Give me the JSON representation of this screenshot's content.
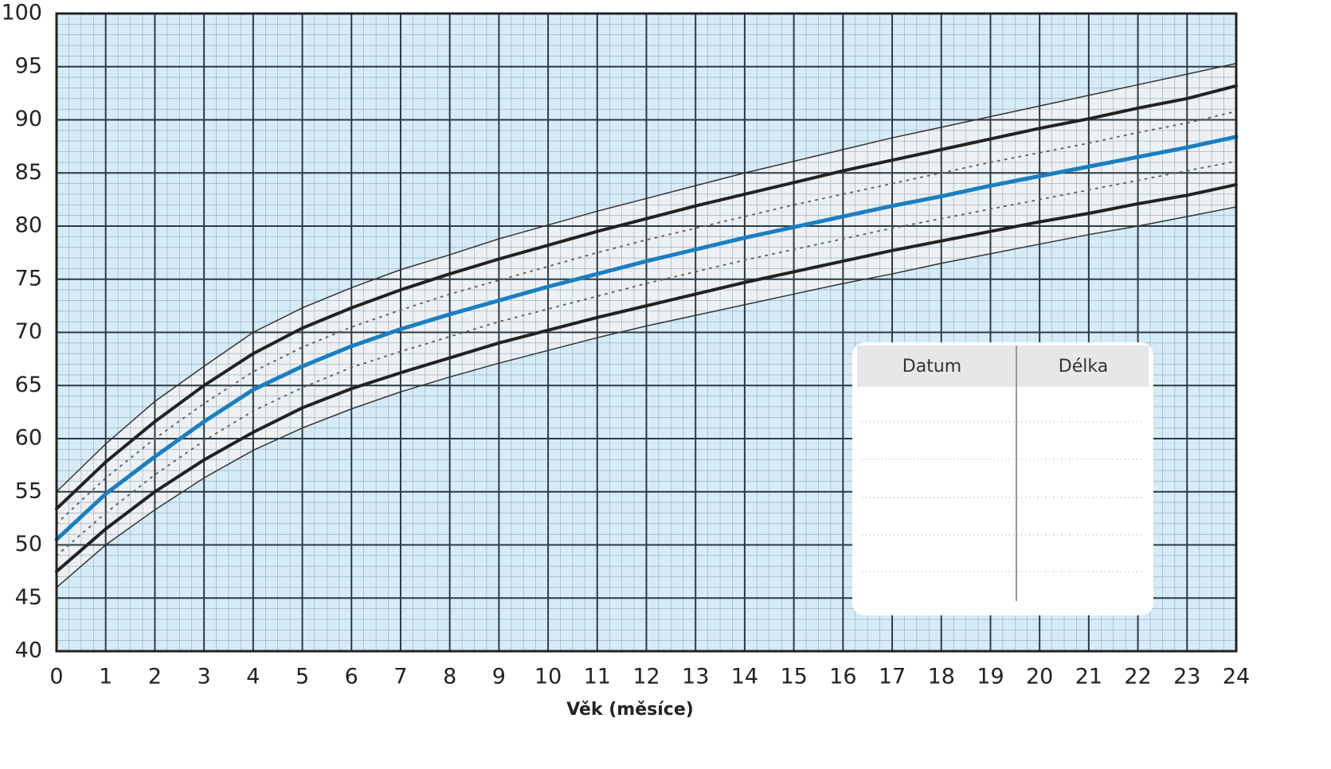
{
  "chart_data": {
    "type": "line",
    "x_label": "Věk (měsíce)",
    "x": [
      0,
      1,
      2,
      3,
      4,
      5,
      6,
      7,
      8,
      9,
      10,
      11,
      12,
      13,
      14,
      15,
      16,
      17,
      18,
      19,
      20,
      21,
      22,
      23,
      24
    ],
    "xlim": [
      0,
      24
    ],
    "xticks": [
      0,
      1,
      2,
      3,
      4,
      5,
      6,
      7,
      8,
      9,
      10,
      11,
      12,
      13,
      14,
      15,
      16,
      17,
      18,
      19,
      20,
      21,
      22,
      23,
      24
    ],
    "ylim": [
      40,
      100
    ],
    "yticks": [
      40,
      45,
      50,
      55,
      60,
      65,
      70,
      75,
      80,
      85,
      90,
      95,
      100
    ],
    "grid": true,
    "background": "#d6ebf7",
    "band_color": "#f1f2f2",
    "series": [
      {
        "color": "#333333",
        "line_style": "solid",
        "line_width": 1.5,
        "values": [
          55,
          59.5,
          63.5,
          66.8,
          70,
          72.3,
          74.2,
          75.9,
          77.3,
          78.8,
          80.1,
          81.4,
          82.6,
          83.8,
          85,
          86.1,
          87.2,
          88.3,
          89.3,
          90.3,
          91.3,
          92.3,
          93.3,
          94.3,
          95.3
        ]
      },
      {
        "color": "#222222",
        "line_style": "solid",
        "line_width": 4,
        "values": [
          53.4,
          57.8,
          61.6,
          65,
          68,
          70.4,
          72.3,
          74,
          75.5,
          76.9,
          78.2,
          79.5,
          80.7,
          81.9,
          83,
          84.1,
          85.2,
          86.2,
          87.2,
          88.2,
          89.2,
          90.1,
          91.1,
          92,
          93.2
        ]
      },
      {
        "color": "#666666",
        "line_style": "dotted",
        "line_width": 2,
        "values": [
          52,
          56.3,
          60,
          63.3,
          66.3,
          68.6,
          70.5,
          72.1,
          73.6,
          74.9,
          76.2,
          77.5,
          78.7,
          79.8,
          80.9,
          82,
          83,
          84,
          85,
          86,
          86.9,
          87.8,
          88.8,
          89.7,
          90.8
        ]
      },
      {
        "color": "#1a7fc1",
        "line_style": "solid",
        "line_width": 5,
        "values": [
          50.5,
          54.8,
          58.3,
          61.6,
          64.6,
          66.8,
          68.7,
          70.3,
          71.7,
          73,
          74.3,
          75.5,
          76.7,
          77.8,
          78.9,
          79.9,
          80.9,
          81.9,
          82.8,
          83.8,
          84.7,
          85.6,
          86.5,
          87.4,
          88.4
        ]
      },
      {
        "color": "#666666",
        "line_style": "dotted",
        "line_width": 2,
        "values": [
          49,
          53,
          56.6,
          59.8,
          62.6,
          64.8,
          66.7,
          68.2,
          69.6,
          71,
          72.2,
          73.4,
          74.6,
          75.7,
          76.8,
          77.8,
          78.8,
          79.8,
          80.7,
          81.6,
          82.5,
          83.4,
          84.3,
          85.2,
          86.1
        ]
      },
      {
        "color": "#222222",
        "line_style": "solid",
        "line_width": 4,
        "values": [
          47.5,
          51.5,
          55,
          58,
          60.6,
          62.9,
          64.7,
          66.2,
          67.6,
          69,
          70.2,
          71.4,
          72.5,
          73.6,
          74.7,
          75.7,
          76.7,
          77.7,
          78.6,
          79.5,
          80.4,
          81.2,
          82.1,
          82.9,
          83.9
        ]
      },
      {
        "color": "#333333",
        "line_style": "solid",
        "line_width": 1.5,
        "values": [
          46,
          50,
          53.3,
          56.3,
          58.9,
          61,
          62.8,
          64.4,
          65.8,
          67.1,
          68.3,
          69.5,
          70.6,
          71.6,
          72.6,
          73.6,
          74.6,
          75.5,
          76.5,
          77.4,
          78.3,
          79.2,
          80,
          80.9,
          81.8
        ]
      }
    ]
  },
  "table": {
    "columns": [
      "Datum",
      "Délka"
    ]
  }
}
